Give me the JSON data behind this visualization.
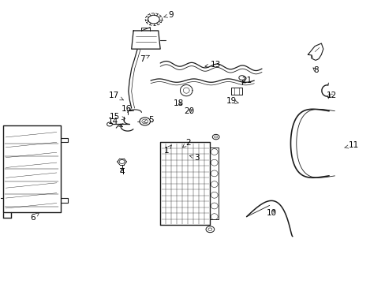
{
  "bg_color": "#ffffff",
  "line_color": "#1a1a1a",
  "label_color": "#000000",
  "fig_width": 4.89,
  "fig_height": 3.6,
  "dpi": 100,
  "label_fontsize": 7.5,
  "arrow_lw": 0.5,
  "labels": {
    "9": [
      0.443,
      0.952,
      0.418,
      0.94
    ],
    "7": [
      0.368,
      0.795,
      0.388,
      0.808
    ],
    "17": [
      0.295,
      0.665,
      0.32,
      0.648
    ],
    "14": [
      0.292,
      0.572,
      0.318,
      0.553
    ],
    "16": [
      0.328,
      0.618,
      0.345,
      0.605
    ],
    "15": [
      0.296,
      0.59,
      0.325,
      0.582
    ],
    "5": [
      0.39,
      0.577,
      0.37,
      0.57
    ],
    "1": [
      0.432,
      0.47,
      0.445,
      0.49
    ],
    "2": [
      0.488,
      0.497,
      0.472,
      0.48
    ],
    "3": [
      0.51,
      0.445,
      0.49,
      0.452
    ],
    "4": [
      0.315,
      0.395,
      0.315,
      0.415
    ],
    "6": [
      0.082,
      0.23,
      0.1,
      0.25
    ],
    "13": [
      0.56,
      0.775,
      0.53,
      0.768
    ],
    "21": [
      0.64,
      0.718,
      0.622,
      0.705
    ],
    "18": [
      0.462,
      0.638,
      0.478,
      0.628
    ],
    "19": [
      0.6,
      0.645,
      0.62,
      0.638
    ],
    "20": [
      0.49,
      0.608,
      0.505,
      0.62
    ],
    "8": [
      0.82,
      0.755,
      0.808,
      0.77
    ],
    "12": [
      0.862,
      0.665,
      0.848,
      0.675
    ],
    "11": [
      0.92,
      0.488,
      0.895,
      0.48
    ],
    "10": [
      0.705,
      0.248,
      0.72,
      0.265
    ]
  }
}
